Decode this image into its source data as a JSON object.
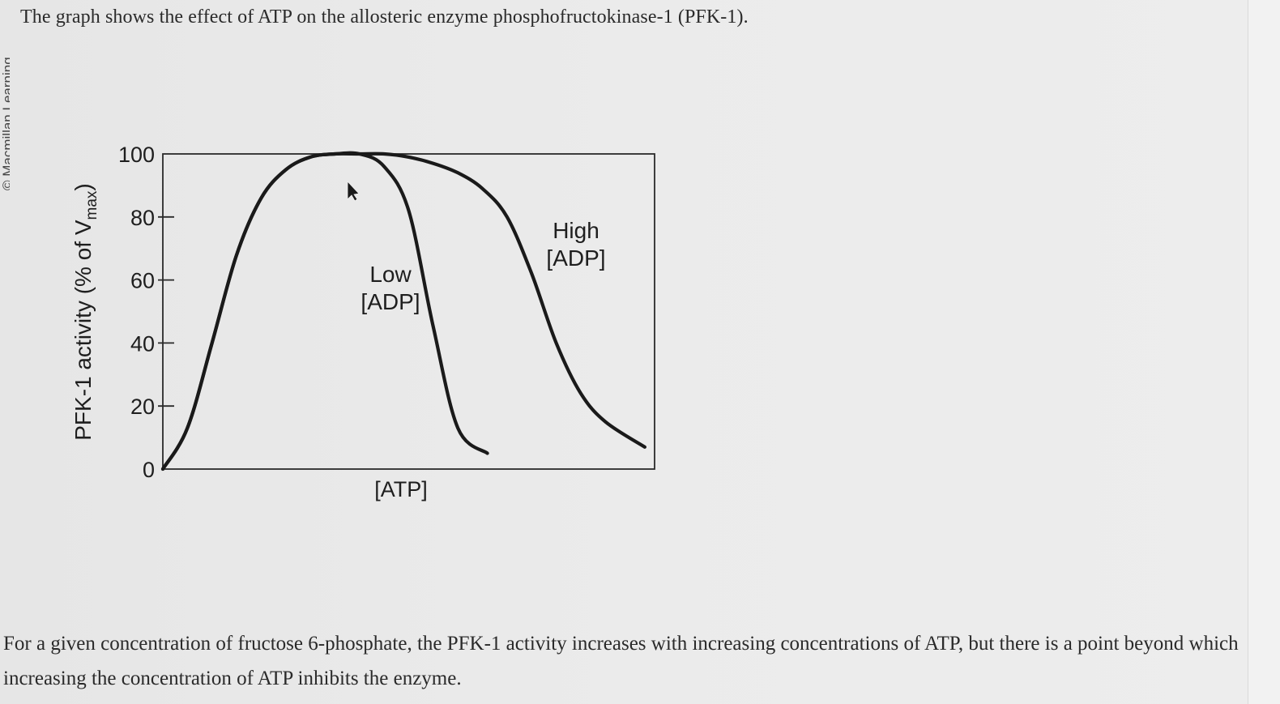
{
  "question": {
    "title": "The graph shows the effect of ATP on the allosteric enzyme phosphofructokinase-1 (PFK-1).",
    "explanation": "For a given concentration of fructose 6-phosphate, the PFK-1 activity increases with increasing concentrations of ATP, but there is a point beyond which increasing the concentration of ATP inhibits the enzyme."
  },
  "side_credit": "© Macmillan Learning",
  "chart_data": {
    "type": "line",
    "title": "",
    "xlabel": "[ATP]",
    "ylabel": "PFK-1 activity (% of V",
    "ylabel_subscript": "max",
    "ylabel_suffix": ")",
    "ylim": [
      0,
      100
    ],
    "xlim": [
      0,
      10
    ],
    "yticks": [
      "0",
      "20",
      "40",
      "60",
      "80",
      "100"
    ],
    "grid": false,
    "legend": "none",
    "series": [
      {
        "label_lines": [
          "Low",
          "[ADP]"
        ],
        "x": [
          0,
          0.5,
          1.0,
          1.5,
          2.0,
          2.5,
          3.0,
          3.5,
          4.0,
          4.5,
          5.0,
          5.5,
          6.0,
          6.6
        ],
        "y": [
          0,
          13,
          40,
          68,
          86,
          95,
          99,
          100,
          100,
          96,
          82,
          45,
          13,
          5
        ]
      },
      {
        "label_lines": [
          "High",
          "[ADP]"
        ],
        "x": [
          0,
          0.5,
          1.0,
          1.5,
          2.0,
          2.5,
          3.0,
          3.5,
          4.0,
          4.5,
          5.0,
          5.5,
          6.0,
          6.5,
          7.0,
          7.5,
          8.0,
          8.5,
          9.0,
          9.8
        ],
        "y": [
          0,
          13,
          40,
          68,
          86,
          95,
          99,
          100,
          100,
          100,
          99,
          97,
          94,
          89,
          80,
          62,
          40,
          24,
          15,
          7
        ]
      }
    ],
    "annotation": "cursor-arrow",
    "colors": {
      "curve": "#1a1a1a",
      "axes": "#2a2a2a"
    }
  }
}
